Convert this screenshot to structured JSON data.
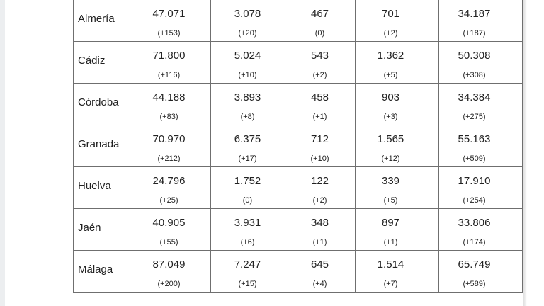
{
  "rows": [
    {
      "province": "Almería",
      "values": [
        "47.071",
        "3.078",
        "467",
        "701",
        "34.187"
      ],
      "deltas": [
        "(+153)",
        "(+20)",
        "(0)",
        "(+2)",
        "(+187)"
      ]
    },
    {
      "province": "Cádiz",
      "values": [
        "71.800",
        "5.024",
        "543",
        "1.362",
        "50.308"
      ],
      "deltas": [
        "(+116)",
        "(+10)",
        "(+2)",
        "(+5)",
        "(+308)"
      ]
    },
    {
      "province": "Córdoba",
      "values": [
        "44.188",
        "3.893",
        "458",
        "903",
        "34.384"
      ],
      "deltas": [
        "(+83)",
        "(+8)",
        "(+1)",
        "(+3)",
        "(+275)"
      ]
    },
    {
      "province": "Granada",
      "values": [
        "70.970",
        "6.375",
        "712",
        "1.565",
        "55.163"
      ],
      "deltas": [
        "(+212)",
        "(+17)",
        "(+10)",
        "(+12)",
        "(+509)"
      ]
    },
    {
      "province": "Huelva",
      "values": [
        "24.796",
        "1.752",
        "122",
        "339",
        "17.910"
      ],
      "deltas": [
        "(+25)",
        "(0)",
        "(+2)",
        "(+5)",
        "(+254)"
      ]
    },
    {
      "province": "Jaén",
      "values": [
        "40.905",
        "3.931",
        "348",
        "897",
        "33.806"
      ],
      "deltas": [
        "(+55)",
        "(+6)",
        "(+1)",
        "(+1)",
        "(+174)"
      ]
    },
    {
      "province": "Málaga",
      "values": [
        "87.049",
        "7.247",
        "645",
        "1.514",
        "65.749"
      ],
      "deltas": [
        "(+200)",
        "(+15)",
        "(+4)",
        "(+7)",
        "(+589)"
      ]
    }
  ]
}
